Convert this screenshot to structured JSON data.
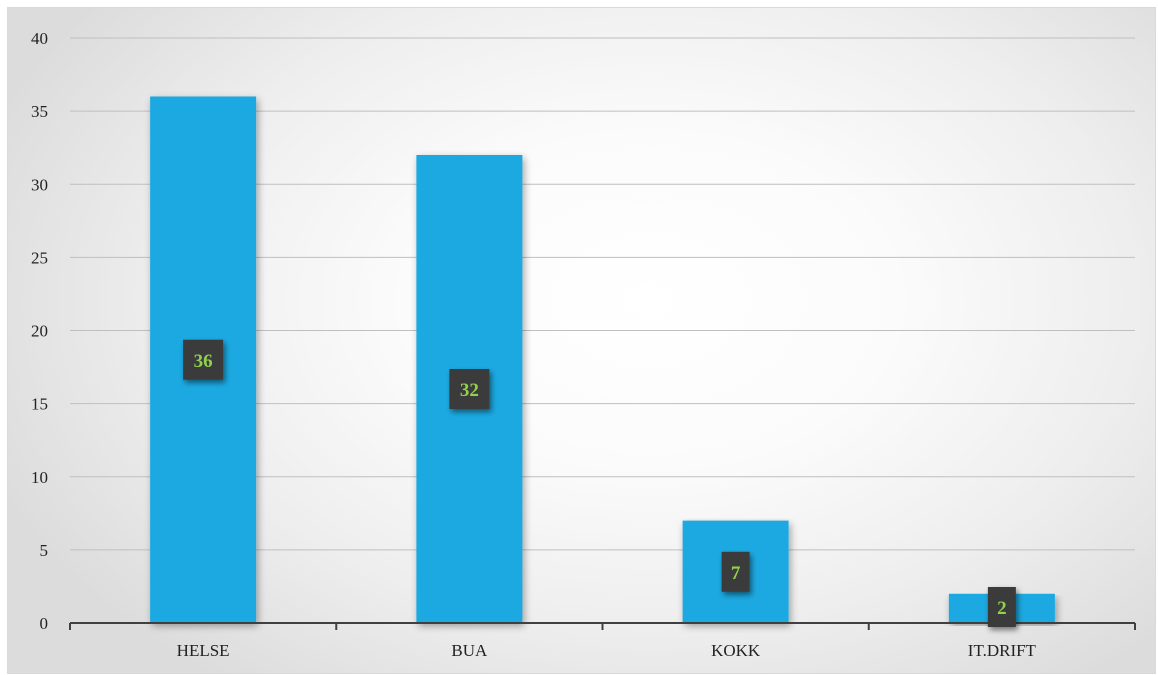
{
  "chart_data": {
    "type": "bar",
    "categories": [
      "HELSE",
      "BUA",
      "KOKK",
      "IT.DRIFT"
    ],
    "values": [
      36,
      32,
      7,
      2
    ],
    "data_labels": [
      "36",
      "32",
      "7",
      "2"
    ],
    "title": "",
    "xlabel": "",
    "ylabel": "",
    "ylim": [
      0,
      40
    ],
    "yticks": [
      0,
      5,
      10,
      15,
      20,
      25,
      30,
      35,
      40
    ],
    "ytick_labels": [
      "0",
      "5",
      "10",
      "15",
      "20",
      "25",
      "30",
      "35",
      "40"
    ],
    "grid": true,
    "legend": "none"
  },
  "colors": {
    "bar": "#1ba9e1",
    "gridline": "#bfbfbf",
    "axis": "#404040",
    "label_box": "#3a3a3a",
    "label_text": "#92d050"
  }
}
